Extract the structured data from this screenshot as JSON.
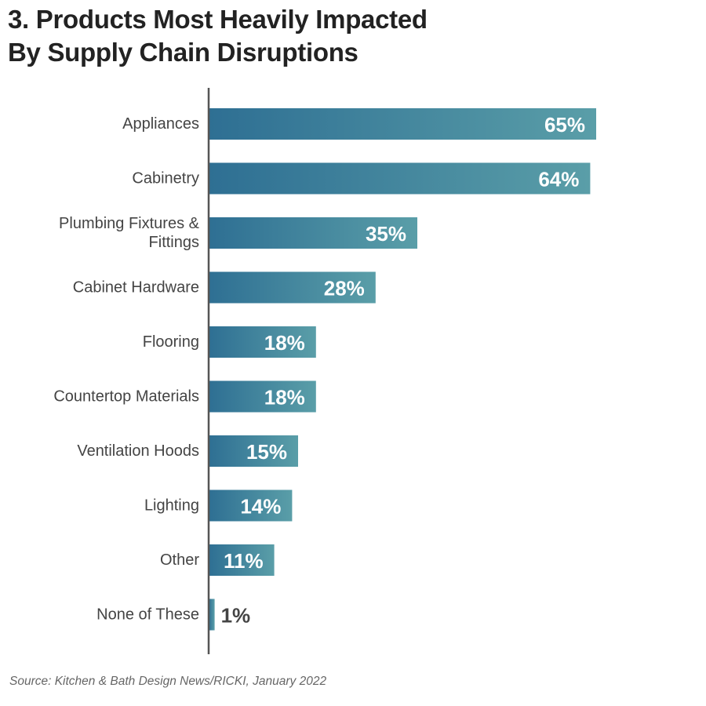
{
  "title": {
    "line1": "3. Products Most Heavily Impacted",
    "line2": "By Supply Chain Disruptions"
  },
  "source": "Source: Kitchen & Bath Design News/RICKI, January 2022",
  "colors": {
    "bar_start": "#2e6f93",
    "bar_end": "#5a9ea8",
    "axis": "#555555",
    "category_label": "#444444",
    "value_label_inside": "#ffffff",
    "value_label_outside": "#444444"
  },
  "chart_data": {
    "type": "bar",
    "orientation": "horizontal",
    "categories": [
      [
        "Appliances"
      ],
      [
        "Cabinetry"
      ],
      [
        "Plumbing Fixtures &",
        "Fittings"
      ],
      [
        "Cabinet Hardware"
      ],
      [
        "Flooring"
      ],
      [
        "Countertop Materials"
      ],
      [
        "Ventilation Hoods"
      ],
      [
        "Lighting"
      ],
      [
        "Other"
      ],
      [
        "None of These"
      ]
    ],
    "values": [
      65,
      64,
      35,
      28,
      18,
      18,
      15,
      14,
      11,
      1
    ],
    "value_labels": [
      "65%",
      "64%",
      "35%",
      "28%",
      "18%",
      "18%",
      "15%",
      "14%",
      "11%",
      "1%"
    ],
    "unit": "%",
    "xlim": [
      0,
      65
    ],
    "grid": false,
    "legend": "none"
  }
}
